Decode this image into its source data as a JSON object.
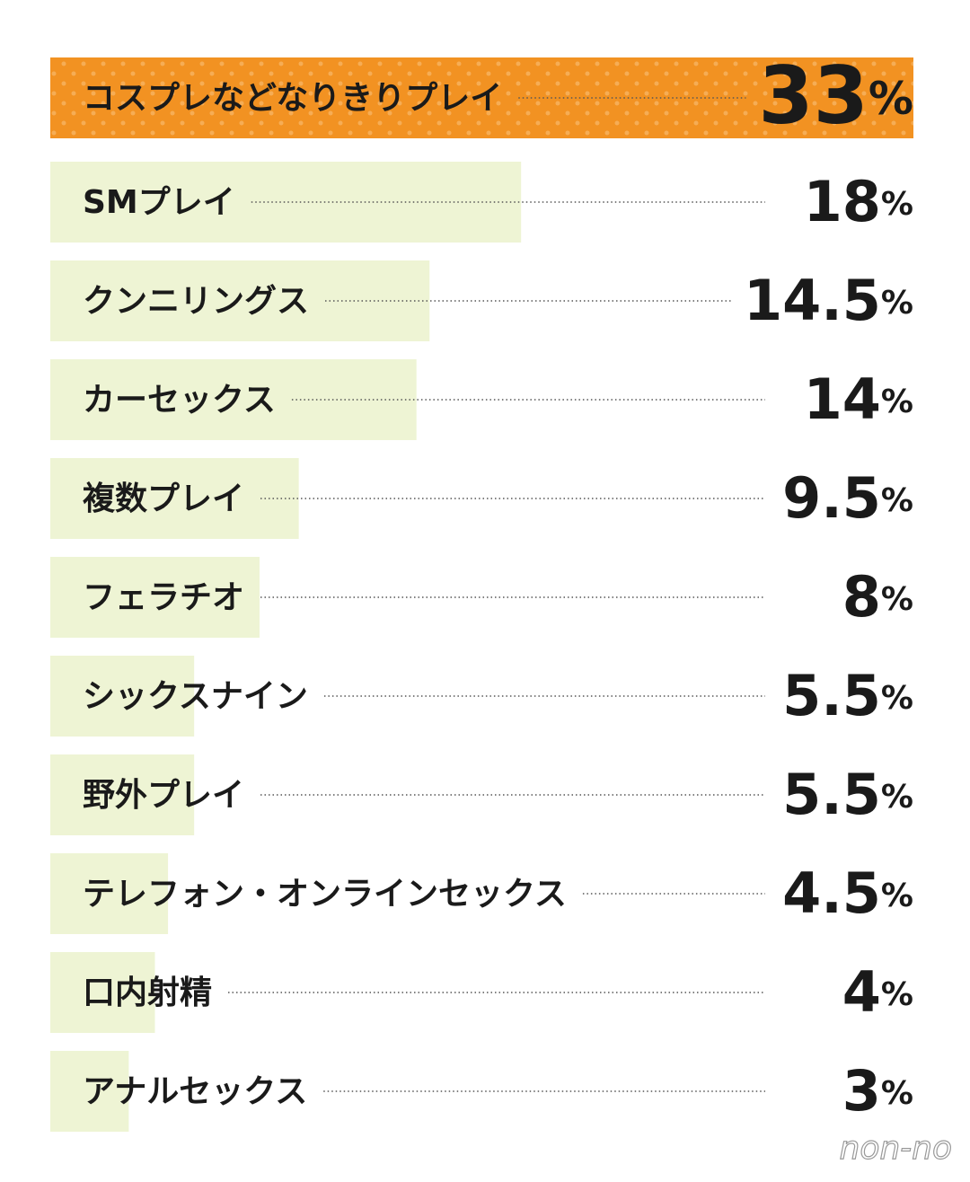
{
  "chart_data": {
    "type": "bar",
    "orientation": "horizontal",
    "categories": [
      "コスプレなどなりきりプレイ",
      "SMプレイ",
      "クンニリングス",
      "カーセックス",
      "複数プレイ",
      "フェラチオ",
      "シックスナイン",
      "野外プレイ",
      "テレフォン・オンラインセックス",
      "口内射精",
      "アナルセックス"
    ],
    "values": [
      33,
      18,
      14.5,
      14,
      9.5,
      8,
      5.5,
      5.5,
      4.5,
      4,
      3
    ],
    "value_labels": [
      "33%",
      "18%",
      "14.5%",
      "14%",
      "9.5%",
      "8%",
      "5.5%",
      "5.5%",
      "4.5%",
      "4%",
      "3%"
    ],
    "color": "#eef4d4",
    "highlight_color": "#f29222"
  },
  "logo": "non-no"
}
